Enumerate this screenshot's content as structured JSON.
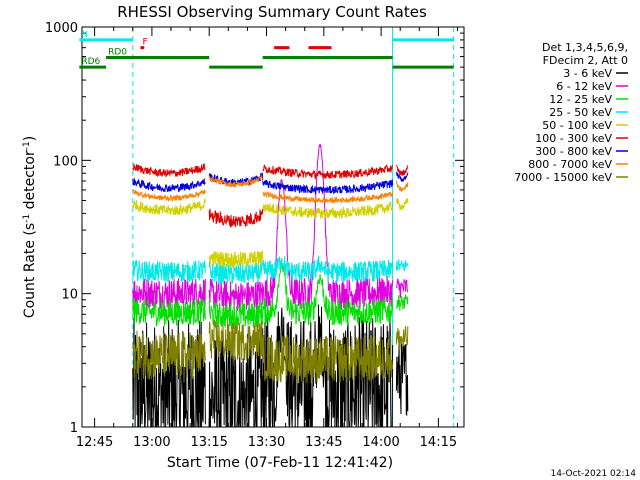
{
  "chart_data": {
    "type": "line",
    "title": "RHESSI Observing Summary Count Rates",
    "xlabel": "Start Time (07-Feb-11 12:41:42)",
    "ylabel_parts": [
      "Count Rate (s",
      "-1",
      " detector",
      "-1",
      ")"
    ],
    "y_scale": "log",
    "ylim": [
      1,
      1000
    ],
    "xlim_minutes_label": [
      "12:41:42",
      "14:21:42"
    ],
    "y_ticks": [
      {
        "value": 1,
        "label": "1"
      },
      {
        "value": 10,
        "label": "10"
      },
      {
        "value": 100,
        "label": "100"
      },
      {
        "value": 1000,
        "label": "1000"
      }
    ],
    "x_ticks": [
      {
        "time": "12:45",
        "label": "12:45"
      },
      {
        "time": "13:00",
        "label": "13:00"
      },
      {
        "time": "13:15",
        "label": "13:15"
      },
      {
        "time": "13:30",
        "label": "13:30"
      },
      {
        "time": "13:45",
        "label": "13:45"
      },
      {
        "time": "14:00",
        "label": "14:00"
      },
      {
        "time": "14:15",
        "label": "14:15"
      }
    ],
    "legend": {
      "placement": "right",
      "header": [
        "Det 1,3,4,5,6,9,",
        "FDecim 2, Att 0"
      ],
      "entries": [
        {
          "label": "3 - 6 keV",
          "color": "#000000"
        },
        {
          "label": "6 - 12 keV",
          "color": "#e000e0"
        },
        {
          "label": "12 - 25 keV",
          "color": "#00e000"
        },
        {
          "label": "25 - 50 keV",
          "color": "#00e8e8"
        },
        {
          "label": "50 - 100 keV",
          "color": "#d0d000"
        },
        {
          "label": "100 - 300 keV",
          "color": "#e00000"
        },
        {
          "label": "300 - 800 keV",
          "color": "#0000e0"
        },
        {
          "label": "800 - 7000 keV",
          "color": "#ff8000"
        },
        {
          "label": "7000 - 15000 keV",
          "color": "#808000"
        }
      ]
    },
    "series": [
      {
        "name": "3 - 6 keV",
        "color": "#000000",
        "segments": [
          {
            "start": "12:55",
            "end": "13:14",
            "base": 1.8,
            "noise": 0.55
          },
          {
            "start": "13:15",
            "end": "13:29",
            "base": 1.6,
            "noise": 0.5
          },
          {
            "start": "13:29",
            "end": "14:03",
            "base": 1.9,
            "noise": 0.55,
            "peaks": [
              {
                "time": "13:34",
                "amp": 3.5
              },
              {
                "time": "13:44",
                "amp": 2.5
              }
            ]
          },
          {
            "start": "14:04",
            "end": "14:07",
            "base": 2.4,
            "noise": 0.3
          }
        ]
      },
      {
        "name": "6 - 12 keV",
        "color": "#e000e0",
        "segments": [
          {
            "start": "12:55",
            "end": "13:14",
            "base": 10,
            "noise": 0.12
          },
          {
            "start": "13:15",
            "end": "13:29",
            "base": 9.5,
            "noise": 0.12
          },
          {
            "start": "13:29",
            "end": "14:03",
            "base": 10,
            "noise": 0.12,
            "peaks": [
              {
                "time": "13:34",
                "amp": 60
              },
              {
                "time": "13:44",
                "amp": 120
              }
            ]
          },
          {
            "start": "14:04",
            "end": "14:07",
            "base": 11,
            "noise": 0.08
          }
        ]
      },
      {
        "name": "12 - 25 keV",
        "color": "#00e000",
        "segments": [
          {
            "start": "12:55",
            "end": "13:14",
            "base": 7.2,
            "noise": 0.1
          },
          {
            "start": "13:15",
            "end": "13:29",
            "base": 6.8,
            "noise": 0.1
          },
          {
            "start": "13:29",
            "end": "14:03",
            "base": 7.2,
            "noise": 0.1,
            "peaks": [
              {
                "time": "13:34",
                "amp": 9
              },
              {
                "time": "13:44",
                "amp": 6
              }
            ]
          },
          {
            "start": "14:04",
            "end": "14:07",
            "base": 8.5,
            "noise": 0.06
          }
        ]
      },
      {
        "name": "25 - 50 keV",
        "color": "#00e8e8",
        "segments": [
          {
            "start": "12:55",
            "end": "13:14",
            "base": 14.5,
            "noise": 0.08
          },
          {
            "start": "13:15",
            "end": "13:29",
            "base": 14,
            "noise": 0.08
          },
          {
            "start": "13:29",
            "end": "14:03",
            "base": 14.5,
            "noise": 0.08,
            "peaks": [
              {
                "time": "13:34",
                "amp": 3
              },
              {
                "time": "13:44",
                "amp": 2
              }
            ]
          },
          {
            "start": "14:04",
            "end": "14:07",
            "base": 16,
            "noise": 0.05
          }
        ]
      },
      {
        "name": "50 - 100 keV",
        "color": "#d0d000",
        "segments": [
          {
            "start": "12:55",
            "end": "13:14",
            "base": 42,
            "noise": 0.04
          },
          {
            "start": "13:15",
            "end": "13:29",
            "base": 18,
            "noise": 0.06
          },
          {
            "start": "13:29",
            "end": "14:03",
            "base": 40,
            "noise": 0.04
          },
          {
            "start": "14:04",
            "end": "14:07",
            "base": 45,
            "noise": 0.03
          }
        ]
      },
      {
        "name": "100 - 300 keV",
        "color": "#e00000",
        "segments": [
          {
            "start": "12:55",
            "end": "13:14",
            "base": 80,
            "noise": 0.03
          },
          {
            "start": "13:15",
            "end": "13:29",
            "base": 35,
            "noise": 0.05
          },
          {
            "start": "13:29",
            "end": "14:03",
            "base": 78,
            "noise": 0.03
          },
          {
            "start": "14:04",
            "end": "14:07",
            "base": 80,
            "noise": 0.02
          }
        ]
      },
      {
        "name": "300 - 800 keV",
        "color": "#0000e0",
        "segments": [
          {
            "start": "12:55",
            "end": "13:14",
            "base": 62,
            "noise": 0.03
          },
          {
            "start": "13:15",
            "end": "13:29",
            "base": 68,
            "noise": 0.03
          },
          {
            "start": "13:29",
            "end": "14:03",
            "base": 60,
            "noise": 0.03
          },
          {
            "start": "14:04",
            "end": "14:07",
            "base": 72,
            "noise": 0.02
          }
        ]
      },
      {
        "name": "800 - 7000 keV",
        "color": "#ff8000",
        "segments": [
          {
            "start": "12:55",
            "end": "13:14",
            "base": 52,
            "noise": 0.02
          },
          {
            "start": "13:15",
            "end": "13:29",
            "base": 66,
            "noise": 0.02
          },
          {
            "start": "13:29",
            "end": "14:03",
            "base": 50,
            "noise": 0.02
          },
          {
            "start": "14:04",
            "end": "14:07",
            "base": 60,
            "noise": 0.02
          }
        ]
      },
      {
        "name": "7000 - 15000 keV",
        "color": "#808000",
        "segments": [
          {
            "start": "12:55",
            "end": "13:14",
            "base": 3.4,
            "noise": 0.18
          },
          {
            "start": "13:15",
            "end": "13:29",
            "base": 4.4,
            "noise": 0.15
          },
          {
            "start": "13:29",
            "end": "14:03",
            "base": 3.2,
            "noise": 0.18
          },
          {
            "start": "14:04",
            "end": "14:07",
            "base": 4.5,
            "noise": 0.1
          }
        ]
      }
    ],
    "flags": [
      {
        "label": "N",
        "color": "#00e8e8",
        "level": 800,
        "ranges": [
          [
            "12:41",
            "12:55"
          ],
          [
            "14:03",
            "14:19"
          ]
        ]
      },
      {
        "label": "F",
        "color": "#e00000",
        "level": 700,
        "ranges": [
          [
            "12:57",
            "12:58"
          ],
          [
            "13:32",
            "13:36"
          ],
          [
            "13:41",
            "13:47"
          ]
        ]
      },
      {
        "label": "RD0",
        "color": "#008000",
        "level": 590,
        "ranges": [
          [
            "12:48",
            "13:15"
          ],
          [
            "13:29",
            "14:03"
          ]
        ]
      },
      {
        "label": "RD6",
        "color": "#008000",
        "level": 500,
        "ranges": [
          [
            "12:41",
            "12:48"
          ],
          [
            "13:15",
            "13:29"
          ],
          [
            "14:03",
            "14:19"
          ]
        ]
      }
    ],
    "vertical_markers": [
      {
        "time": "12:41:42",
        "color": "#00e8e8",
        "style": "solid"
      },
      {
        "time": "12:55",
        "color": "#00e8e8",
        "style": "dashed"
      },
      {
        "time": "14:03",
        "color": "#00e8e8",
        "style": "solid"
      },
      {
        "time": "14:19",
        "color": "#00e8e8",
        "style": "dashed"
      }
    ],
    "footer_timestamp": "14-Oct-2021 02:14"
  }
}
